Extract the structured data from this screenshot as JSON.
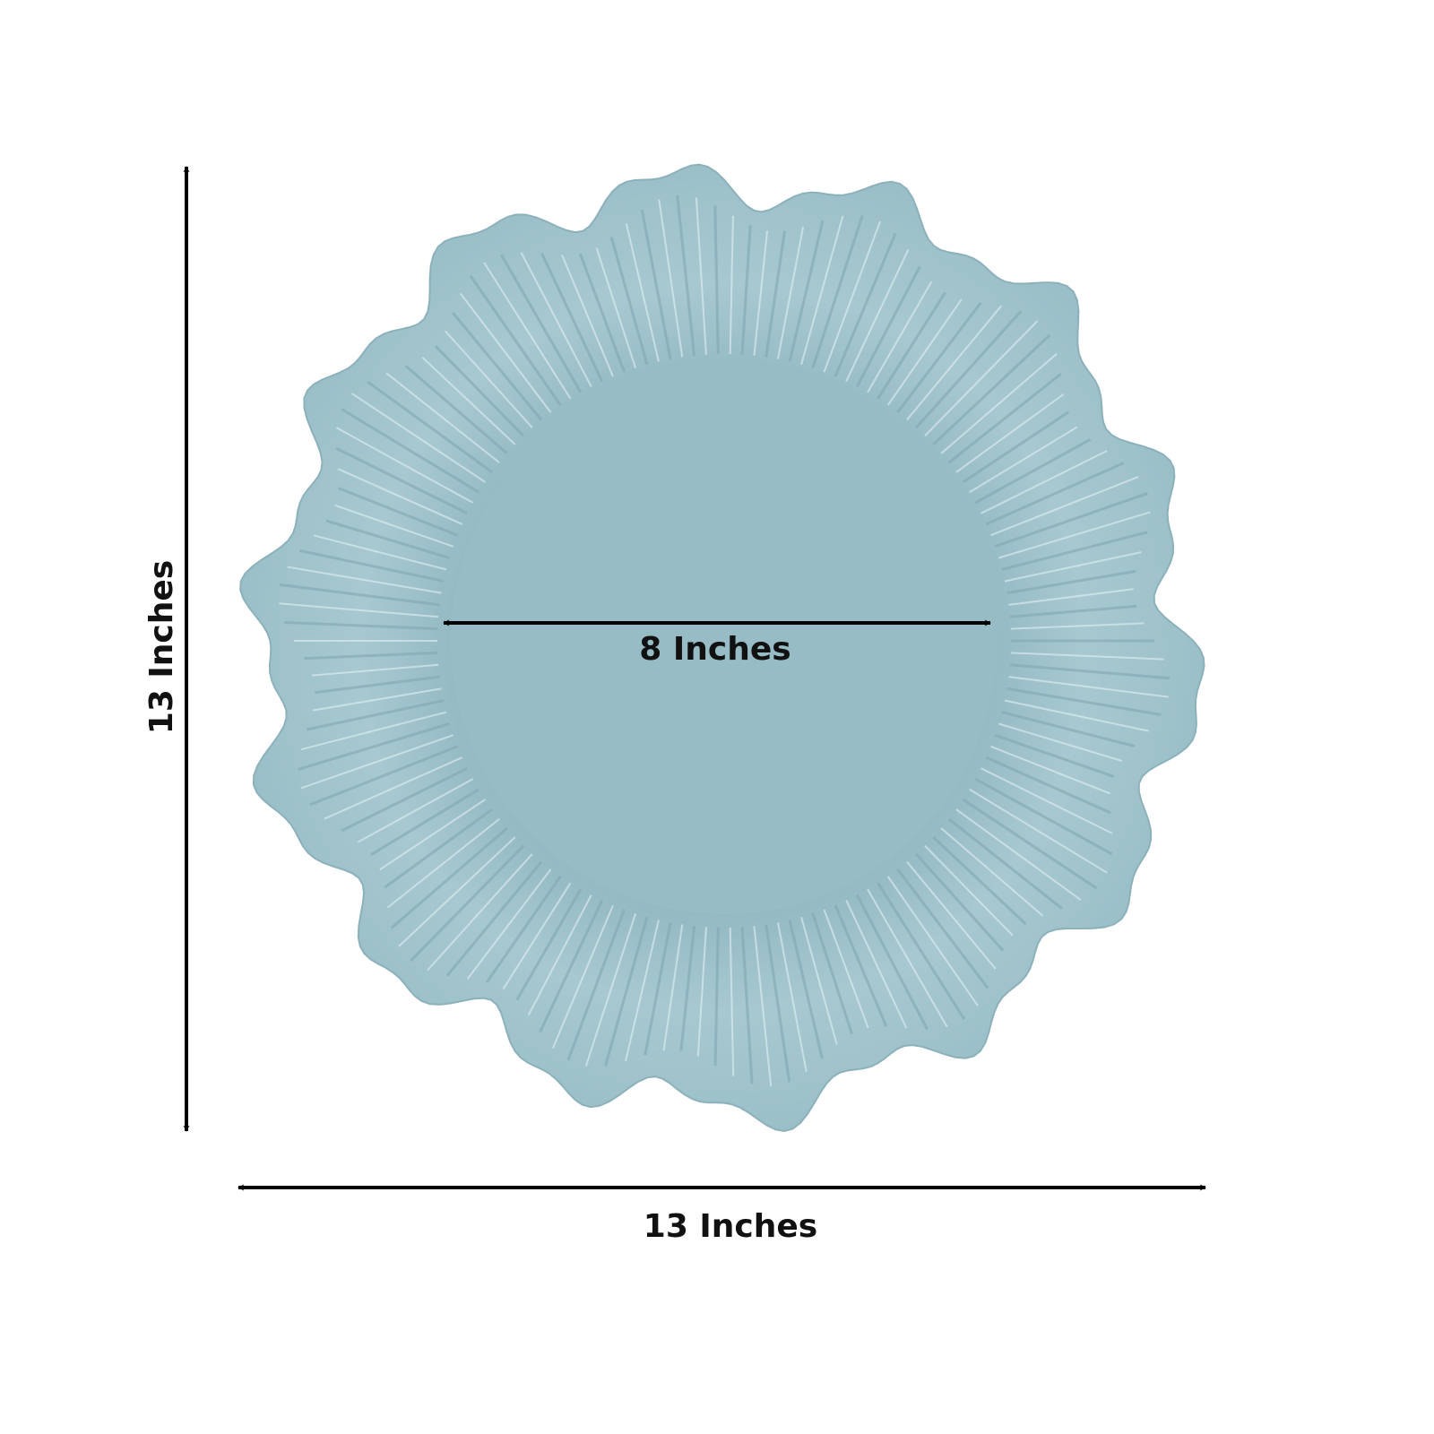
{
  "dimensions": {
    "height": {
      "label": "13 Inches"
    },
    "width": {
      "label": "13 Inches"
    },
    "inner": {
      "label": "8 Inches"
    }
  }
}
